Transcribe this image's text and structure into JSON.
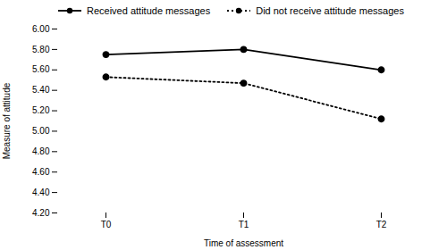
{
  "chart_data": {
    "type": "line",
    "categories": [
      "T0",
      "T1",
      "T2"
    ],
    "series": [
      {
        "name": "Received attitude messages",
        "color": "#000000",
        "values": [
          5.75,
          5.8,
          5.6
        ],
        "line_style": "solid",
        "marker": "circle"
      },
      {
        "name": "Did not receive attitude messages",
        "color": "#000000",
        "values": [
          5.53,
          5.47,
          5.12
        ],
        "line_style": "dotted",
        "marker": "circle"
      }
    ],
    "xlabel": "Time of assessment",
    "ylabel": "Measure of attitude",
    "ylim": [
      4.2,
      6.0
    ],
    "yticks": [
      {
        "value": 4.2,
        "label": "4.20"
      },
      {
        "value": 4.4,
        "label": "4.40"
      },
      {
        "value": 4.6,
        "label": "4.60"
      },
      {
        "value": 4.8,
        "label": "4.80"
      },
      {
        "value": 5.0,
        "label": "5.00"
      },
      {
        "value": 5.2,
        "label": "5.20"
      },
      {
        "value": 5.4,
        "label": "5.40"
      },
      {
        "value": 5.6,
        "label": "5.60"
      },
      {
        "value": 5.8,
        "label": "5.80"
      },
      {
        "value": 6.0,
        "label": "6.00"
      }
    ],
    "grid": false,
    "legend": "top"
  }
}
